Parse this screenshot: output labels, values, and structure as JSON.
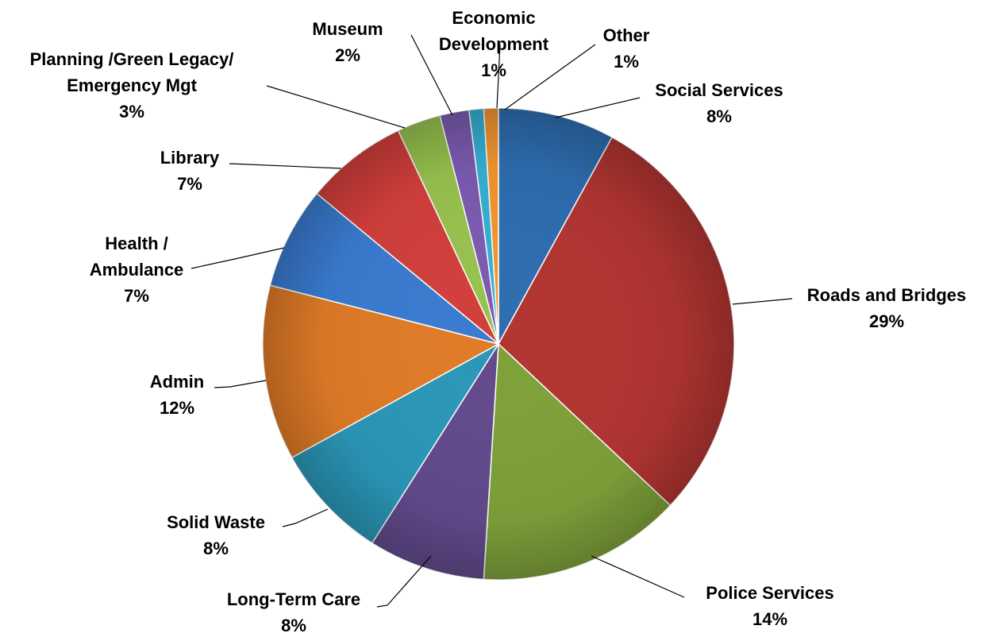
{
  "chart_data": {
    "type": "pie",
    "title": "",
    "legend": "none",
    "slices": [
      {
        "label": [
          "Social Services"
        ],
        "value": 8,
        "pct_label": "8%",
        "color": "#2e6db0"
      },
      {
        "label": [
          "Roads and Bridges"
        ],
        "value": 29,
        "pct_label": "29%",
        "color": "#b23531"
      },
      {
        "label": [
          "Police Services"
        ],
        "value": 14,
        "pct_label": "14%",
        "color": "#7ea13a"
      },
      {
        "label": [
          "Long-Term Care"
        ],
        "value": 8,
        "pct_label": "8%",
        "color": "#624a8c"
      },
      {
        "label": [
          "Solid Waste"
        ],
        "value": 8,
        "pct_label": "8%",
        "color": "#2b97b8"
      },
      {
        "label": [
          "Admin"
        ],
        "value": 12,
        "pct_label": "12%",
        "color": "#e07b27"
      },
      {
        "label": [
          "Health /",
          "Ambulance"
        ],
        "value": 7,
        "pct_label": "7%",
        "color": "#3a7bd0"
      },
      {
        "label": [
          "Library"
        ],
        "value": 7,
        "pct_label": "7%",
        "color": "#d23f3b"
      },
      {
        "label": [
          "Planning /Green Legacy/",
          "Emergency Mgt"
        ],
        "value": 3,
        "pct_label": "3%",
        "color": "#98c24f"
      },
      {
        "label": [
          "Museum"
        ],
        "value": 2,
        "pct_label": "2%",
        "color": "#7c5bb0"
      },
      {
        "label": [
          "Economic",
          "Development"
        ],
        "value": 1,
        "pct_label": "1%",
        "color": "#35b0d3"
      },
      {
        "label": [
          "Other"
        ],
        "value": 1,
        "pct_label": "1%",
        "color": "#f39530"
      }
    ]
  }
}
